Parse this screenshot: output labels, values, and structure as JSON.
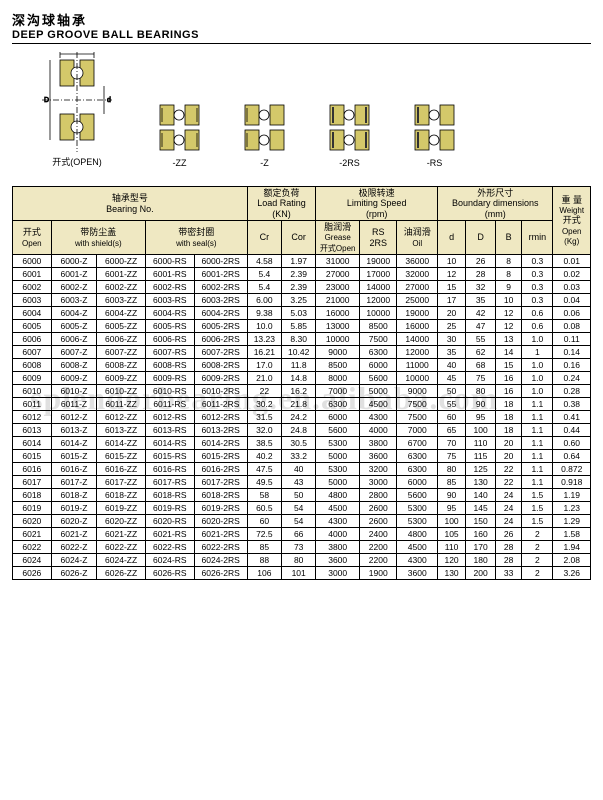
{
  "title_cn": "深沟球轴承",
  "title_en": "DEEP GROOVE BALL BEARINGS",
  "dia_labels": {
    "open": "开式(OPEN)",
    "zz": "-ZZ",
    "z": "-Z",
    "2rs": "-2RS",
    "rs": "-RS"
  },
  "watermark": "splendorbearing.en.alibaba.com",
  "table": {
    "head": {
      "bearing_no_cn": "轴承型号",
      "bearing_no_en": "Bearing No.",
      "load_cn": "额定负荷",
      "load_en": "Load Rating",
      "load_unit": "(KN)",
      "speed_cn": "极限转速",
      "speed_en": "Limiting Speed",
      "speed_unit": "(rpm)",
      "dim_cn": "外形尺寸",
      "dim_en": "Boundary dimensions",
      "dim_unit": "(mm)",
      "weight_cn": "重 量",
      "weight_en": "Weight",
      "open_cn": "开式",
      "open_en": "Open",
      "shield_cn": "带防尘盖",
      "shield_en": "with shield(s)",
      "seal_cn": "带密封圈",
      "seal_en": "with seal(s)",
      "cr": "Cr",
      "cor": "Cor",
      "grease_cn": "脂润滑",
      "grease_en": "Grease",
      "grease_open_cn": "开式",
      "grease_open_en": "Open",
      "rs": "RS",
      "rs2": "2RS",
      "oil_cn": "油润滑",
      "oil_en": "Oil",
      "d": "d",
      "D2": "D",
      "B": "B",
      "rmin": "rmin",
      "weight_open_cn": "开式",
      "weight_open_en": "Open",
      "weight_unit": "(Kg)"
    },
    "colors": {
      "head_bg": "#efe8c2",
      "border": "#000000"
    },
    "rows": [
      [
        "6000",
        "6000-Z",
        "6000-ZZ",
        "6000-RS",
        "6000-2RS",
        "4.58",
        "1.97",
        "31000",
        "19000",
        "36000",
        "10",
        "26",
        "8",
        "0.3",
        "0.01"
      ],
      [
        "6001",
        "6001-Z",
        "6001-ZZ",
        "6001-RS",
        "6001-2RS",
        "5.4",
        "2.39",
        "27000",
        "17000",
        "32000",
        "12",
        "28",
        "8",
        "0.3",
        "0.02"
      ],
      [
        "6002",
        "6002-Z",
        "6002-ZZ",
        "6002-RS",
        "6002-2RS",
        "5.4",
        "2.39",
        "23000",
        "14000",
        "27000",
        "15",
        "32",
        "9",
        "0.3",
        "0.03"
      ],
      [
        "6003",
        "6003-Z",
        "6003-ZZ",
        "6003-RS",
        "6003-2RS",
        "6.00",
        "3.25",
        "21000",
        "12000",
        "25000",
        "17",
        "35",
        "10",
        "0.3",
        "0.04"
      ],
      [
        "6004",
        "6004-Z",
        "6004-ZZ",
        "6004-RS",
        "6004-2RS",
        "9.38",
        "5.03",
        "16000",
        "10000",
        "19000",
        "20",
        "42",
        "12",
        "0.6",
        "0.06"
      ],
      [
        "6005",
        "6005-Z",
        "6005-ZZ",
        "6005-RS",
        "6005-2RS",
        "10.0",
        "5.85",
        "13000",
        "8500",
        "16000",
        "25",
        "47",
        "12",
        "0.6",
        "0.08"
      ],
      [
        "6006",
        "6006-Z",
        "6006-ZZ",
        "6006-RS",
        "6006-2RS",
        "13.23",
        "8.30",
        "10000",
        "7500",
        "14000",
        "30",
        "55",
        "13",
        "1.0",
        "0.11"
      ],
      [
        "6007",
        "6007-Z",
        "6007-ZZ",
        "6007-RS",
        "6007-2RS",
        "16.21",
        "10.42",
        "9000",
        "6300",
        "12000",
        "35",
        "62",
        "14",
        "1",
        "0.14"
      ],
      [
        "6008",
        "6008-Z",
        "6008-ZZ",
        "6008-RS",
        "6008-2RS",
        "17.0",
        "11.8",
        "8500",
        "6000",
        "11000",
        "40",
        "68",
        "15",
        "1.0",
        "0.16"
      ],
      [
        "6009",
        "6009-Z",
        "6009-ZZ",
        "6009-RS",
        "6009-2RS",
        "21.0",
        "14.8",
        "8000",
        "5600",
        "10000",
        "45",
        "75",
        "16",
        "1.0",
        "0.24"
      ],
      [
        "6010",
        "6010-Z",
        "6010-ZZ",
        "6010-RS",
        "6010-2RS",
        "22",
        "16.2",
        "7000",
        "5000",
        "9000",
        "50",
        "80",
        "16",
        "1.0",
        "0.28"
      ],
      [
        "6011",
        "6011-Z",
        "6011-ZZ",
        "6011-RS",
        "6011-2RS",
        "30.2",
        "21.8",
        "6300",
        "4500",
        "7500",
        "55",
        "90",
        "18",
        "1.1",
        "0.38"
      ],
      [
        "6012",
        "6012-Z",
        "6012-ZZ",
        "6012-RS",
        "6012-2RS",
        "31.5",
        "24.2",
        "6000",
        "4300",
        "7500",
        "60",
        "95",
        "18",
        "1.1",
        "0.41"
      ],
      [
        "6013",
        "6013-Z",
        "6013-ZZ",
        "6013-RS",
        "6013-2RS",
        "32.0",
        "24.8",
        "5600",
        "4000",
        "7000",
        "65",
        "100",
        "18",
        "1.1",
        "0.44"
      ],
      [
        "6014",
        "6014-Z",
        "6014-ZZ",
        "6014-RS",
        "6014-2RS",
        "38.5",
        "30.5",
        "5300",
        "3800",
        "6700",
        "70",
        "110",
        "20",
        "1.1",
        "0.60"
      ],
      [
        "6015",
        "6015-Z",
        "6015-ZZ",
        "6015-RS",
        "6015-2RS",
        "40.2",
        "33.2",
        "5000",
        "3600",
        "6300",
        "75",
        "115",
        "20",
        "1.1",
        "0.64"
      ],
      [
        "6016",
        "6016-Z",
        "6016-ZZ",
        "6016-RS",
        "6016-2RS",
        "47.5",
        "40",
        "5300",
        "3200",
        "6300",
        "80",
        "125",
        "22",
        "1.1",
        "0.872"
      ],
      [
        "6017",
        "6017-Z",
        "6017-ZZ",
        "6017-RS",
        "6017-2RS",
        "49.5",
        "43",
        "5000",
        "3000",
        "6000",
        "85",
        "130",
        "22",
        "1.1",
        "0.918"
      ],
      [
        "6018",
        "6018-Z",
        "6018-ZZ",
        "6018-RS",
        "6018-2RS",
        "58",
        "50",
        "4800",
        "2800",
        "5600",
        "90",
        "140",
        "24",
        "1.5",
        "1.19"
      ],
      [
        "6019",
        "6019-Z",
        "6019-ZZ",
        "6019-RS",
        "6019-2RS",
        "60.5",
        "54",
        "4500",
        "2600",
        "5300",
        "95",
        "145",
        "24",
        "1.5",
        "1.23"
      ],
      [
        "6020",
        "6020-Z",
        "6020-ZZ",
        "6020-RS",
        "6020-2RS",
        "60",
        "54",
        "4300",
        "2600",
        "5300",
        "100",
        "150",
        "24",
        "1.5",
        "1.29"
      ],
      [
        "6021",
        "6021-Z",
        "6021-ZZ",
        "6021-RS",
        "6021-2RS",
        "72.5",
        "66",
        "4000",
        "2400",
        "4800",
        "105",
        "160",
        "26",
        "2",
        "1.58"
      ],
      [
        "6022",
        "6022-Z",
        "6022-ZZ",
        "6022-RS",
        "6022-2RS",
        "85",
        "73",
        "3800",
        "2200",
        "4500",
        "110",
        "170",
        "28",
        "2",
        "1.94"
      ],
      [
        "6024",
        "6024-Z",
        "6024-ZZ",
        "6024-RS",
        "6024-2RS",
        "88",
        "80",
        "3600",
        "2200",
        "4300",
        "120",
        "180",
        "28",
        "2",
        "2.08"
      ],
      [
        "6026",
        "6026-Z",
        "6026-ZZ",
        "6026-RS",
        "6026-2RS",
        "106",
        "101",
        "3000",
        "1900",
        "3600",
        "130",
        "200",
        "33",
        "2",
        "3.26"
      ]
    ]
  }
}
